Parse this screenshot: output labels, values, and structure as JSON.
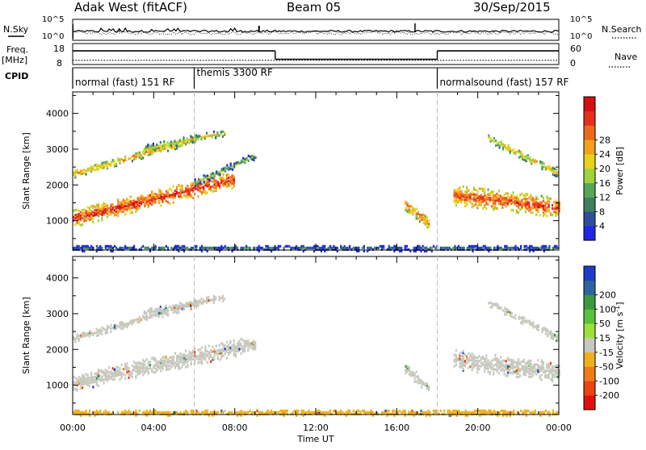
{
  "header": {
    "station": "Adak West (fitACF)",
    "beam": "Beam 05",
    "date": "30/Sep/2015"
  },
  "top_panels": {
    "nsky_label": "N.Sky",
    "nsearch_label": "N.Search",
    "nsky_ticks": [
      "10^5",
      "10^0"
    ],
    "nsearch_ticks": [
      "10^5",
      "10^0"
    ],
    "freq_label": "Freq.",
    "freq_unit": "[MHz]",
    "freq_ticks": [
      "18",
      "8"
    ],
    "nave_label": "Nave",
    "nave_ticks": [
      "60",
      "0"
    ],
    "cpid_label": "CPID",
    "cpid_segments": [
      {
        "label": "normal (fast) 151 RF",
        "start_h": 0,
        "end_h": 6
      },
      {
        "label": "themis 3300 RF",
        "start_h": 6,
        "end_h": 18
      },
      {
        "label": "normalsound (fast) 157 RF",
        "start_h": 18,
        "end_h": 24
      }
    ]
  },
  "chart_data": [
    {
      "type": "heatmap",
      "title": "",
      "xlabel": "Time UT",
      "ylabel": "Slant Range [km]",
      "xlim": [
        0,
        24
      ],
      "ylim": [
        180,
        4600
      ],
      "x_ticks": [
        "00:00",
        "04:00",
        "08:00",
        "12:00",
        "16:00",
        "20:00",
        "00:00"
      ],
      "y_ticks": [
        1000,
        2000,
        3000,
        4000
      ],
      "colorbar": {
        "label": "Power [dB]",
        "ticks": [
          4,
          8,
          12,
          16,
          20,
          24,
          28
        ],
        "range": [
          0,
          30
        ],
        "colors": [
          "#1e28e6",
          "#2e4f9a",
          "#3f7f5f",
          "#57a65a",
          "#9ed33c",
          "#e8d21a",
          "#f3a11b",
          "#ee6a1b",
          "#e62f18",
          "#d60f10"
        ]
      },
      "echo_bands": [
        {
          "name": "near-range clutter",
          "start_h": 0.0,
          "end_h": 24.0,
          "range_start_km": 220,
          "range_end_km": 220,
          "half_width_km": 80,
          "power_db": 7
        },
        {
          "name": "E-region echo",
          "start_h": 0.0,
          "end_h": 8.0,
          "range_start_km": 1050,
          "range_end_km": 2150,
          "half_width_km": 230,
          "power_db": 26
        },
        {
          "name": "morning band 2",
          "start_h": 0.0,
          "end_h": 6.2,
          "range_start_km": 2300,
          "range_end_km": 3300,
          "half_width_km": 110,
          "power_db": 20
        },
        {
          "name": "morning band 3",
          "start_h": 3.5,
          "end_h": 7.5,
          "range_start_km": 3000,
          "range_end_km": 3450,
          "half_width_km": 90,
          "power_db": 16
        },
        {
          "name": "extension",
          "start_h": 6.0,
          "end_h": 9.0,
          "range_start_km": 2050,
          "range_end_km": 2800,
          "half_width_km": 90,
          "power_db": 12
        },
        {
          "name": "isolated patch",
          "start_h": 16.4,
          "end_h": 17.6,
          "range_start_km": 1450,
          "range_end_km": 900,
          "half_width_km": 160,
          "power_db": 22
        },
        {
          "name": "evening echo",
          "start_h": 18.8,
          "end_h": 24.0,
          "range_start_km": 1700,
          "range_end_km": 1350,
          "half_width_km": 270,
          "power_db": 25
        },
        {
          "name": "evening band 2",
          "start_h": 20.5,
          "end_h": 24.0,
          "range_start_km": 3300,
          "range_end_km": 2300,
          "half_width_km": 110,
          "power_db": 18
        }
      ]
    },
    {
      "type": "heatmap",
      "title": "",
      "xlabel": "Time UT",
      "ylabel": "Slant Range [km]",
      "xlim": [
        0,
        24
      ],
      "ylim": [
        180,
        4600
      ],
      "x_ticks": [
        "00:00",
        "04:00",
        "08:00",
        "12:00",
        "16:00",
        "20:00",
        "00:00"
      ],
      "y_ticks": [
        1000,
        2000,
        3000,
        4000
      ],
      "colorbar": {
        "label": "Velocity [m s^-1]",
        "ticks": [
          "200",
          "100",
          "50",
          "15",
          "-15",
          "-50",
          "-100",
          "-200"
        ],
        "colors": [
          "#1e3cc8",
          "#2d64a0",
          "#3a9a3a",
          "#58c43c",
          "#9ee03a",
          "#c8c8be",
          "#f0b01c",
          "#f07a18",
          "#e84414",
          "#e01010"
        ]
      },
      "echo_bands": [
        {
          "name": "near-range ground scatter",
          "start_h": 0.0,
          "end_h": 24.0,
          "range_start_km": 220,
          "range_end_km": 220,
          "half_width_km": 80,
          "velocity_ms": -40
        },
        {
          "name": "E-region echo",
          "start_h": 0.0,
          "end_h": 9.0,
          "range_start_km": 1050,
          "range_end_km": 2150,
          "half_width_km": 230,
          "velocity_ms": 0
        },
        {
          "name": "morning band 2",
          "start_h": 0.0,
          "end_h": 6.2,
          "range_start_km": 2300,
          "range_end_km": 3300,
          "half_width_km": 110,
          "velocity_ms": 0
        },
        {
          "name": "morning band 3",
          "start_h": 3.5,
          "end_h": 7.5,
          "range_start_km": 3000,
          "range_end_km": 3450,
          "half_width_km": 90,
          "velocity_ms": 0
        },
        {
          "name": "isolated patch",
          "start_h": 16.4,
          "end_h": 17.6,
          "range_start_km": 1450,
          "range_end_km": 900,
          "half_width_km": 160,
          "velocity_ms": 0
        },
        {
          "name": "evening echo",
          "start_h": 18.8,
          "end_h": 24.0,
          "range_start_km": 1700,
          "range_end_km": 1350,
          "half_width_km": 270,
          "velocity_ms": 0
        },
        {
          "name": "evening band 2",
          "start_h": 20.5,
          "end_h": 24.0,
          "range_start_km": 3300,
          "range_end_km": 2300,
          "half_width_km": 110,
          "velocity_ms": 0
        }
      ]
    }
  ],
  "top_series": {
    "freq_mhz": [
      {
        "start_h": 0,
        "end_h": 10,
        "value": 14.5
      },
      {
        "start_h": 10,
        "end_h": 18,
        "value": 10.5
      },
      {
        "start_h": 18,
        "end_h": 24,
        "value": 14.5
      }
    ],
    "nave": [
      {
        "start_h": 0,
        "end_h": 24,
        "value": 12
      }
    ]
  }
}
